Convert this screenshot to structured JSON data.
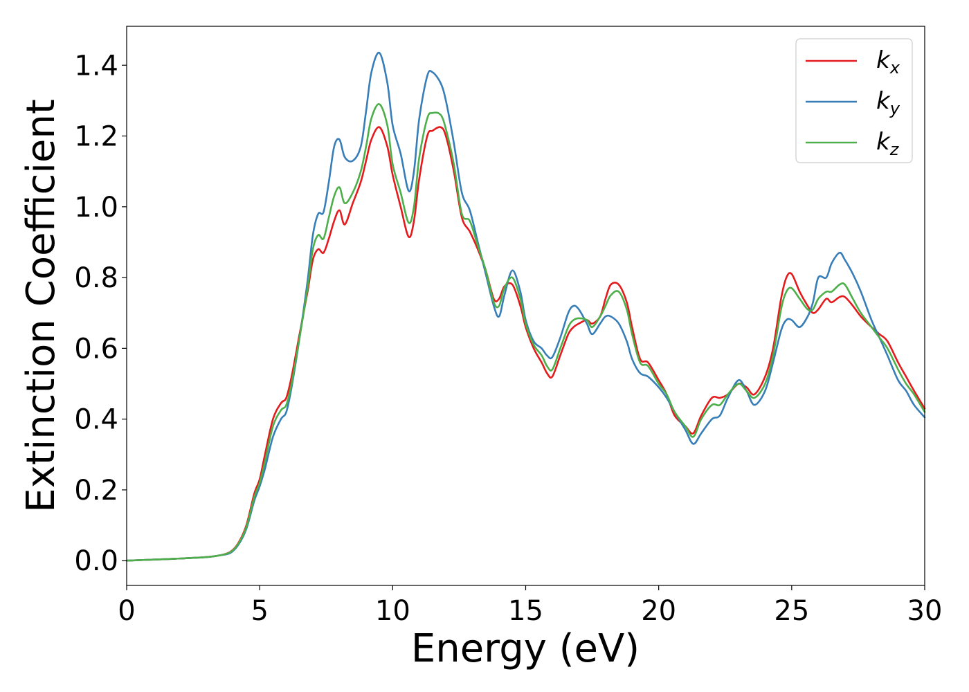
{
  "chart_data": {
    "type": "line",
    "xlabel": "Energy (eV)",
    "ylabel": "Extinction Coefficient",
    "xlim": [
      0,
      30
    ],
    "ylim": [
      -0.07,
      1.51
    ],
    "xticks": [
      0,
      5,
      10,
      15,
      20,
      25,
      30
    ],
    "xtick_labels": [
      "0",
      "5",
      "10",
      "15",
      "20",
      "25",
      "30"
    ],
    "yticks": [
      0.0,
      0.2,
      0.4,
      0.6,
      0.8,
      1.0,
      1.2,
      1.4
    ],
    "ytick_labels": [
      "0.0",
      "0.2",
      "0.4",
      "0.6",
      "0.8",
      "1.0",
      "1.2",
      "1.4"
    ],
    "grid": false,
    "legend_position": "top-right",
    "series": [
      {
        "name": "k",
        "subscript": "x",
        "color": "#e41a1c",
        "x": [
          0,
          1,
          2,
          3,
          3.5,
          3.9,
          4.2,
          4.5,
          4.8,
          5.0,
          5.2,
          5.5,
          5.8,
          6.0,
          6.2,
          6.5,
          6.8,
          7.0,
          7.2,
          7.4,
          7.6,
          7.8,
          8.0,
          8.2,
          8.5,
          8.8,
          9.0,
          9.2,
          9.5,
          9.8,
          10.0,
          10.3,
          10.6,
          10.8,
          11.0,
          11.3,
          11.5,
          11.8,
          12.0,
          12.3,
          12.6,
          12.9,
          13.2,
          13.5,
          13.8,
          14.0,
          14.2,
          14.5,
          14.8,
          15.0,
          15.3,
          15.6,
          15.8,
          16.0,
          16.3,
          16.6,
          16.8,
          17.0,
          17.3,
          17.5,
          17.8,
          18.0,
          18.2,
          18.5,
          18.8,
          19.0,
          19.3,
          19.6,
          20.0,
          20.3,
          20.6,
          21.0,
          21.3,
          21.6,
          22.0,
          22.3,
          22.6,
          23.0,
          23.3,
          23.6,
          24.0,
          24.3,
          24.6,
          24.8,
          25.0,
          25.3,
          25.6,
          25.8,
          26.0,
          26.3,
          26.5,
          26.8,
          27.0,
          27.3,
          27.6,
          28.0,
          28.3,
          28.6,
          29.0,
          29.3,
          29.6,
          30.0
        ],
        "values": [
          0.0,
          0.003,
          0.006,
          0.01,
          0.015,
          0.025,
          0.05,
          0.1,
          0.19,
          0.23,
          0.3,
          0.4,
          0.445,
          0.46,
          0.52,
          0.64,
          0.76,
          0.85,
          0.88,
          0.87,
          0.91,
          0.96,
          0.99,
          0.95,
          1.01,
          1.07,
          1.13,
          1.19,
          1.225,
          1.17,
          1.09,
          1.0,
          0.915,
          0.96,
          1.08,
          1.2,
          1.215,
          1.225,
          1.2,
          1.1,
          0.97,
          0.93,
          0.88,
          0.82,
          0.74,
          0.74,
          0.775,
          0.78,
          0.72,
          0.66,
          0.6,
          0.56,
          0.53,
          0.52,
          0.58,
          0.64,
          0.66,
          0.67,
          0.68,
          0.67,
          0.69,
          0.74,
          0.78,
          0.78,
          0.73,
          0.66,
          0.57,
          0.56,
          0.51,
          0.47,
          0.41,
          0.38,
          0.36,
          0.41,
          0.46,
          0.46,
          0.47,
          0.5,
          0.49,
          0.47,
          0.52,
          0.6,
          0.74,
          0.8,
          0.81,
          0.76,
          0.72,
          0.7,
          0.71,
          0.74,
          0.73,
          0.745,
          0.745,
          0.72,
          0.69,
          0.66,
          0.64,
          0.62,
          0.56,
          0.52,
          0.48,
          0.43
        ]
      },
      {
        "name": "k",
        "subscript": "y",
        "color": "#377eb8",
        "x": [
          0,
          1,
          2,
          3,
          3.5,
          3.9,
          4.2,
          4.5,
          4.8,
          5.0,
          5.2,
          5.5,
          5.8,
          6.0,
          6.2,
          6.5,
          6.8,
          7.0,
          7.2,
          7.4,
          7.6,
          7.8,
          8.0,
          8.2,
          8.5,
          8.8,
          9.0,
          9.2,
          9.5,
          9.8,
          10.0,
          10.3,
          10.6,
          10.8,
          11.0,
          11.3,
          11.5,
          11.8,
          12.0,
          12.3,
          12.6,
          12.9,
          13.2,
          13.5,
          13.8,
          14.0,
          14.2,
          14.5,
          14.8,
          15.0,
          15.3,
          15.6,
          15.8,
          16.0,
          16.3,
          16.6,
          16.8,
          17.0,
          17.3,
          17.5,
          17.8,
          18.0,
          18.2,
          18.5,
          18.8,
          19.0,
          19.3,
          19.6,
          20.0,
          20.3,
          20.6,
          21.0,
          21.3,
          21.6,
          22.0,
          22.3,
          22.6,
          23.0,
          23.3,
          23.6,
          24.0,
          24.3,
          24.6,
          24.8,
          25.0,
          25.3,
          25.6,
          25.8,
          26.0,
          26.3,
          26.5,
          26.8,
          27.0,
          27.3,
          27.6,
          28.0,
          28.3,
          28.6,
          29.0,
          29.3,
          29.6,
          30.0
        ],
        "values": [
          0.0,
          0.003,
          0.006,
          0.01,
          0.015,
          0.022,
          0.045,
          0.09,
          0.17,
          0.21,
          0.26,
          0.35,
          0.4,
          0.42,
          0.49,
          0.63,
          0.79,
          0.92,
          0.98,
          0.985,
          1.07,
          1.17,
          1.19,
          1.14,
          1.13,
          1.17,
          1.27,
          1.38,
          1.435,
          1.35,
          1.23,
          1.15,
          1.045,
          1.1,
          1.25,
          1.37,
          1.38,
          1.35,
          1.3,
          1.18,
          1.04,
          0.99,
          0.9,
          0.81,
          0.72,
          0.69,
          0.75,
          0.82,
          0.76,
          0.68,
          0.62,
          0.6,
          0.58,
          0.575,
          0.63,
          0.7,
          0.72,
          0.71,
          0.67,
          0.64,
          0.67,
          0.69,
          0.69,
          0.67,
          0.62,
          0.57,
          0.53,
          0.52,
          0.49,
          0.46,
          0.42,
          0.37,
          0.33,
          0.36,
          0.4,
          0.41,
          0.46,
          0.51,
          0.48,
          0.44,
          0.48,
          0.56,
          0.65,
          0.68,
          0.68,
          0.66,
          0.69,
          0.73,
          0.8,
          0.8,
          0.84,
          0.87,
          0.85,
          0.81,
          0.76,
          0.68,
          0.63,
          0.58,
          0.51,
          0.48,
          0.44,
          0.405
        ]
      },
      {
        "name": "k",
        "subscript": "z",
        "color": "#4daf4a",
        "x": [
          0,
          1,
          2,
          3,
          3.5,
          3.9,
          4.2,
          4.5,
          4.8,
          5.0,
          5.2,
          5.5,
          5.8,
          6.0,
          6.2,
          6.5,
          6.8,
          7.0,
          7.2,
          7.4,
          7.6,
          7.8,
          8.0,
          8.2,
          8.5,
          8.8,
          9.0,
          9.2,
          9.5,
          9.8,
          10.0,
          10.3,
          10.6,
          10.8,
          11.0,
          11.3,
          11.5,
          11.8,
          12.0,
          12.3,
          12.6,
          12.9,
          13.2,
          13.5,
          13.8,
          14.0,
          14.2,
          14.5,
          14.8,
          15.0,
          15.3,
          15.6,
          15.8,
          16.0,
          16.3,
          16.6,
          16.8,
          17.0,
          17.3,
          17.5,
          17.8,
          18.0,
          18.2,
          18.5,
          18.8,
          19.0,
          19.3,
          19.6,
          20.0,
          20.3,
          20.6,
          21.0,
          21.3,
          21.6,
          22.0,
          22.3,
          22.6,
          23.0,
          23.3,
          23.6,
          24.0,
          24.3,
          24.6,
          24.8,
          25.0,
          25.3,
          25.6,
          25.8,
          26.0,
          26.3,
          26.5,
          26.8,
          27.0,
          27.3,
          27.6,
          28.0,
          28.3,
          28.6,
          29.0,
          29.3,
          29.6,
          30.0
        ],
        "values": [
          0.0,
          0.003,
          0.006,
          0.01,
          0.015,
          0.024,
          0.048,
          0.095,
          0.18,
          0.22,
          0.28,
          0.38,
          0.425,
          0.44,
          0.5,
          0.63,
          0.77,
          0.88,
          0.92,
          0.91,
          0.97,
          1.03,
          1.055,
          1.01,
          1.04,
          1.1,
          1.17,
          1.25,
          1.29,
          1.23,
          1.12,
          1.04,
          0.955,
          1.0,
          1.14,
          1.25,
          1.265,
          1.26,
          1.22,
          1.12,
          0.98,
          0.96,
          0.89,
          0.82,
          0.73,
          0.72,
          0.77,
          0.8,
          0.74,
          0.67,
          0.61,
          0.58,
          0.55,
          0.54,
          0.6,
          0.66,
          0.68,
          0.685,
          0.68,
          0.66,
          0.69,
          0.72,
          0.75,
          0.76,
          0.71,
          0.64,
          0.56,
          0.55,
          0.5,
          0.47,
          0.42,
          0.38,
          0.35,
          0.4,
          0.44,
          0.44,
          0.47,
          0.5,
          0.48,
          0.46,
          0.5,
          0.58,
          0.71,
          0.76,
          0.77,
          0.74,
          0.71,
          0.71,
          0.74,
          0.76,
          0.76,
          0.78,
          0.78,
          0.74,
          0.7,
          0.66,
          0.63,
          0.6,
          0.54,
          0.5,
          0.47,
          0.42
        ]
      }
    ]
  }
}
